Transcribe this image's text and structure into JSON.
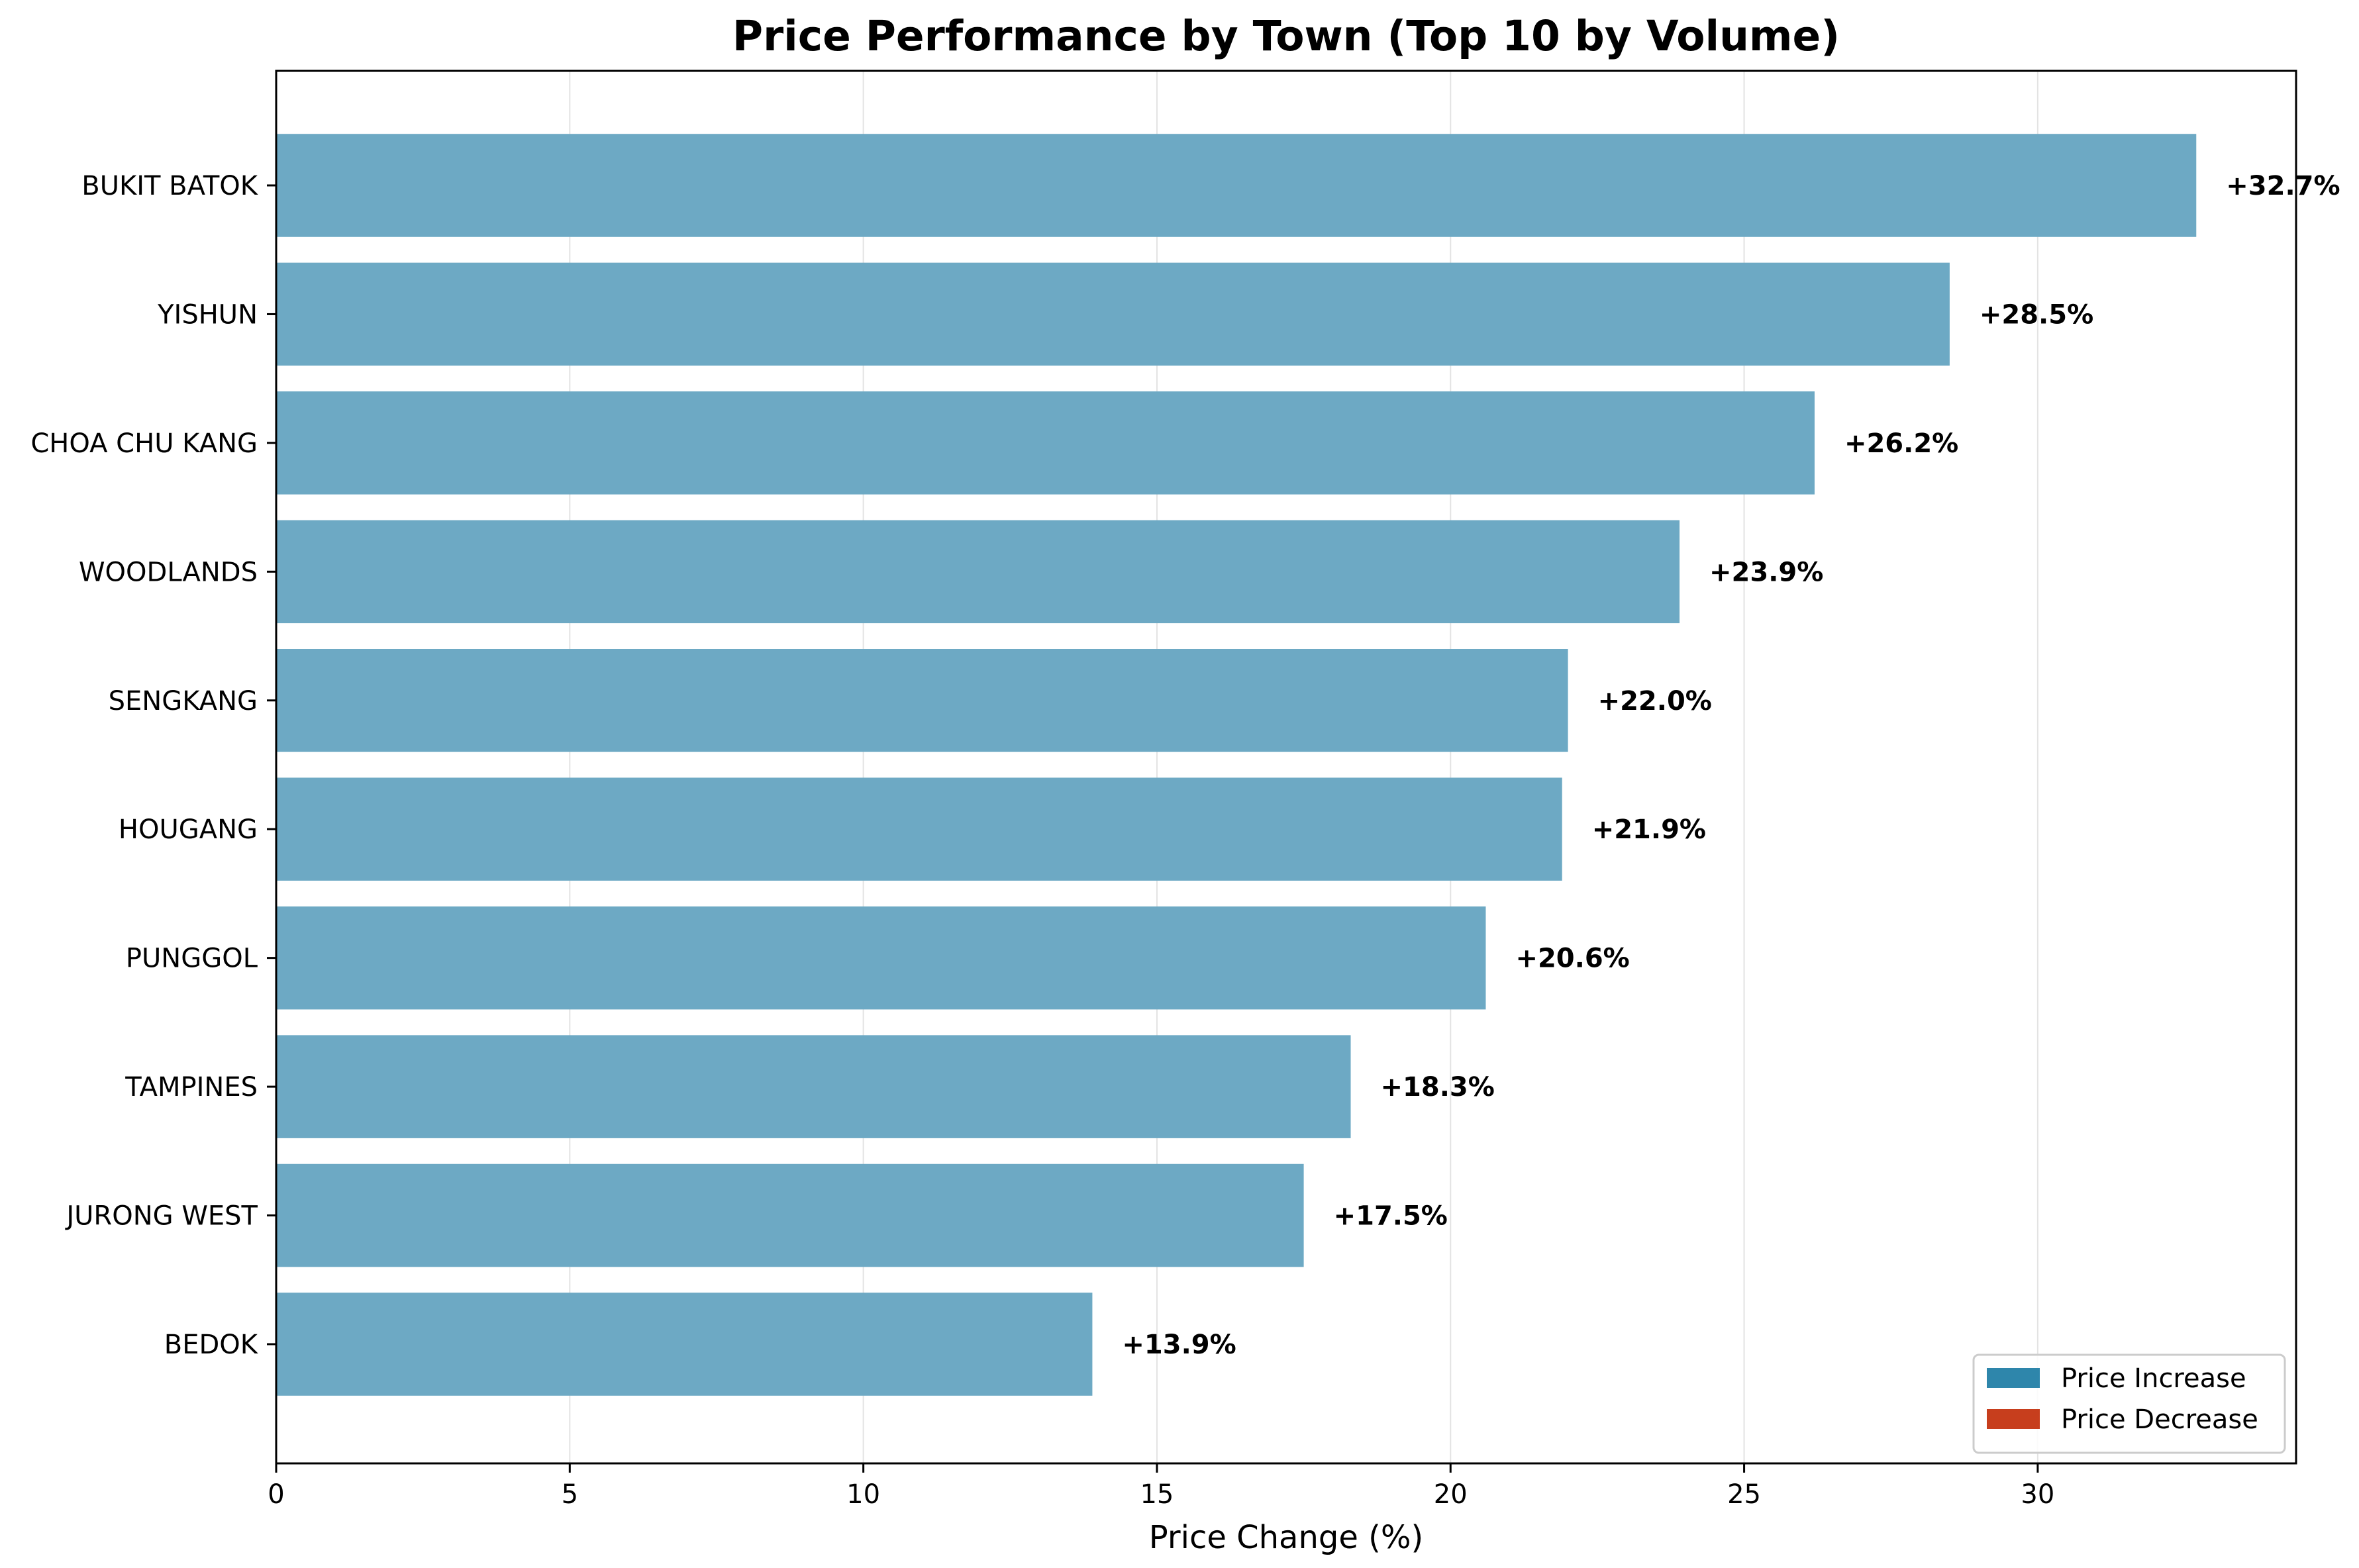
{
  "chart_data": {
    "type": "bar",
    "orientation": "horizontal",
    "title": "Price Performance by Town (Top 10 by Volume)",
    "xlabel": "Price Change (%)",
    "ylabel": "",
    "xlim": [
      0,
      34.4
    ],
    "xticks": [
      0,
      5,
      10,
      15,
      20,
      25,
      30
    ],
    "grid": "vertical",
    "categories": [
      "BUKIT BATOK",
      "YISHUN",
      "CHOA CHU KANG",
      "WOODLANDS",
      "SENGKANG",
      "HOUGANG",
      "PUNGGOL",
      "TAMPINES",
      "JURONG WEST",
      "BEDOK"
    ],
    "values": [
      32.7,
      28.5,
      26.2,
      23.9,
      22.0,
      21.9,
      20.6,
      18.3,
      17.5,
      13.9
    ],
    "data_labels": [
      "+32.7%",
      "+28.5%",
      "+26.2%",
      "+23.9%",
      "+22.0%",
      "+21.9%",
      "+20.6%",
      "+18.3%",
      "+17.5%",
      "+13.9%"
    ],
    "bar_color": "#6da9c4",
    "legend": {
      "placement": "lower-right",
      "entries": [
        {
          "label": "Price Increase",
          "color": "#2e86ab"
        },
        {
          "label": "Price Decrease",
          "color": "#c73e1d"
        }
      ]
    }
  }
}
